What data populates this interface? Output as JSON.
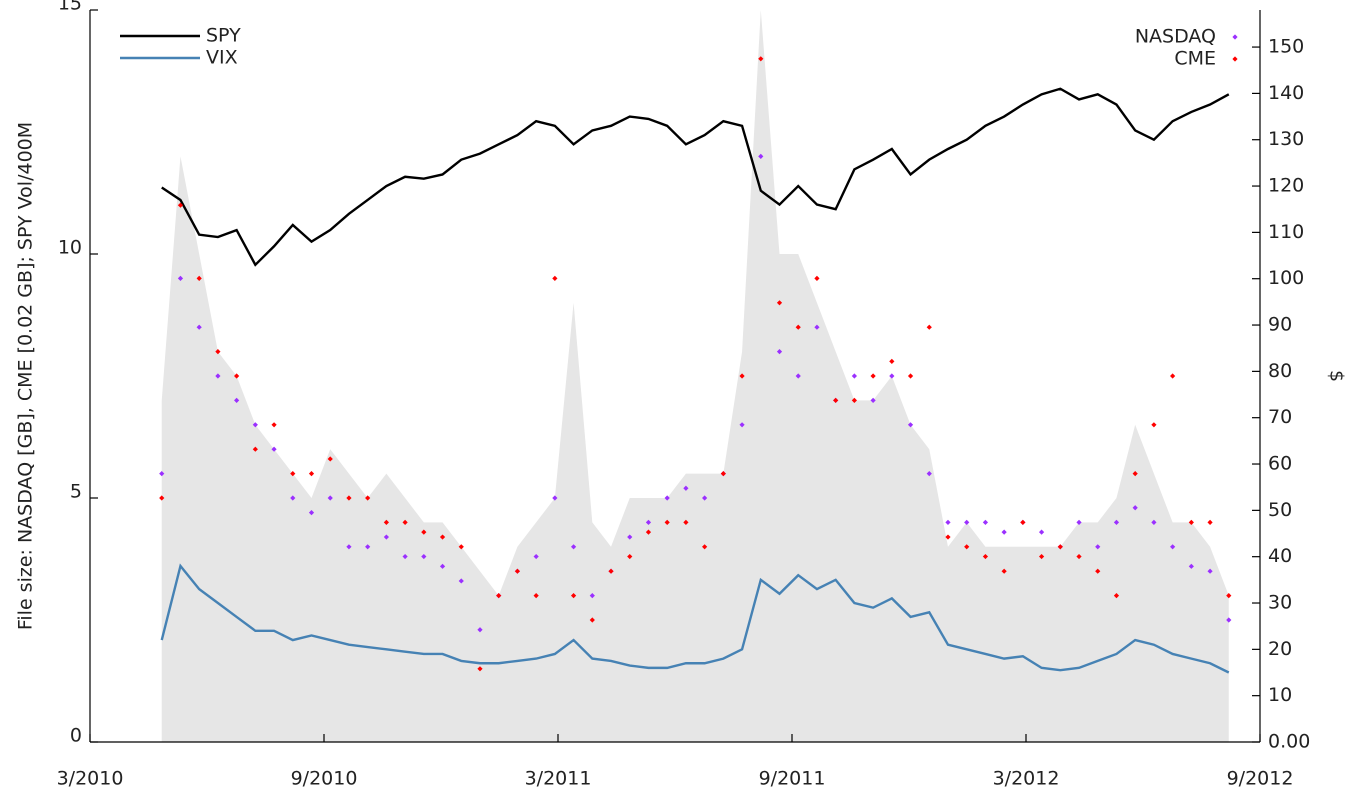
{
  "chart_data": {
    "type": "line",
    "ylabel": "File size: NASDAQ [GB], CME [0.02 GB]; SPY Vol/400M",
    "y2label": "$",
    "xlim": [
      2010.1667,
      2012.6667
    ],
    "xticks": [
      {
        "value": 2010.1667,
        "label": "3/2010"
      },
      {
        "value": 2010.6667,
        "label": "9/2010"
      },
      {
        "value": 2011.1667,
        "label": "3/2011"
      },
      {
        "value": 2011.6667,
        "label": "9/2011"
      },
      {
        "value": 2012.1667,
        "label": "3/2012"
      },
      {
        "value": 2012.6667,
        "label": "9/2012"
      }
    ],
    "ylim": [
      0,
      15
    ],
    "yticks": [
      0,
      5,
      10,
      15
    ],
    "y2lim": [
      0,
      158
    ],
    "y2ticks": [
      {
        "value": 0,
        "label": "0.00"
      },
      10,
      20,
      30,
      40,
      50,
      60,
      70,
      80,
      90,
      100,
      110,
      120,
      130,
      140,
      150
    ],
    "x": [
      2010.32,
      2010.36,
      2010.4,
      2010.44,
      2010.48,
      2010.52,
      2010.56,
      2010.6,
      2010.64,
      2010.68,
      2010.72,
      2010.76,
      2010.8,
      2010.84,
      2010.88,
      2010.92,
      2010.96,
      2011.0,
      2011.04,
      2011.08,
      2011.12,
      2011.16,
      2011.2,
      2011.24,
      2011.28,
      2011.32,
      2011.36,
      2011.4,
      2011.44,
      2011.48,
      2011.52,
      2011.56,
      2011.6,
      2011.64,
      2011.68,
      2011.72,
      2011.76,
      2011.8,
      2011.84,
      2011.88,
      2011.92,
      2011.96,
      2012.0,
      2012.04,
      2012.08,
      2012.12,
      2012.16,
      2012.2,
      2012.24,
      2012.28,
      2012.32,
      2012.36,
      2012.4,
      2012.44,
      2012.48,
      2012.52,
      2012.56,
      2012.6
    ],
    "series": [
      {
        "mark": "area",
        "axis": "y",
        "color": "#e6e6e6",
        "values": [
          7,
          12,
          10,
          8,
          7.5,
          6.5,
          6,
          5.5,
          5,
          6,
          5.5,
          5,
          5.5,
          5,
          4.5,
          4.5,
          4,
          3.5,
          3,
          4,
          4.5,
          5,
          9,
          4.5,
          4,
          5,
          5,
          5,
          5.5,
          5.5,
          5.5,
          8,
          15,
          10,
          10,
          9,
          8,
          7,
          7,
          7.5,
          6.5,
          6,
          4,
          4.5,
          4,
          4,
          4,
          4,
          4,
          4.5,
          4.5,
          5,
          6.5,
          5.5,
          4.5,
          4.5,
          4,
          3
        ]
      },
      {
        "name": "SPY",
        "mark": "line",
        "axis": "y2",
        "color": "#000000",
        "legend": "upper left",
        "values": [
          119.7,
          117,
          109.5,
          109,
          110.5,
          103,
          107,
          111.6,
          108,
          110.5,
          114,
          117,
          120,
          122,
          121.6,
          122.5,
          125.7,
          127,
          129,
          131,
          134,
          133,
          129,
          132,
          133,
          135,
          134.5,
          133,
          129,
          131,
          134,
          133,
          119,
          116,
          120,
          116,
          115,
          123.6,
          125.7,
          128,
          122.5,
          125.7,
          128,
          130,
          133,
          135,
          137.6,
          139.8,
          141,
          138.7,
          139.8,
          137.6,
          132,
          130,
          134,
          136,
          137.6,
          139.8
        ]
      },
      {
        "name": "VIX",
        "mark": "line",
        "axis": "y2",
        "color": "#4682b4",
        "legend": "upper left",
        "values": [
          22,
          38,
          33,
          30,
          27,
          24,
          24,
          22,
          23,
          22,
          21,
          20.5,
          20,
          19.5,
          19,
          19,
          17.5,
          17,
          17,
          17.5,
          18,
          19,
          22,
          18,
          17.5,
          16.5,
          16,
          16,
          17,
          17,
          18,
          20,
          35,
          32,
          36,
          33,
          35,
          30,
          29,
          31,
          27,
          28,
          21,
          20,
          19,
          18,
          18.5,
          16,
          15.5,
          16,
          17.5,
          19,
          22,
          21,
          19,
          18,
          17,
          15
        ]
      },
      {
        "name": "NASDAQ",
        "mark": "points",
        "axis": "y",
        "color": "#9b30ff",
        "legend": "upper right",
        "values": [
          5.5,
          9.5,
          8.5,
          7.5,
          7,
          6.5,
          6,
          5,
          4.7,
          5,
          4,
          4,
          4.2,
          3.8,
          3.8,
          3.6,
          3.3,
          2.3,
          3,
          3.5,
          3.8,
          5,
          4,
          3,
          3.5,
          4.2,
          4.5,
          5,
          5.2,
          5,
          5.5,
          6.5,
          12,
          8,
          7.5,
          8.5,
          7,
          7.5,
          7,
          7.5,
          6.5,
          5.5,
          4.5,
          4.5,
          4.5,
          4.3,
          4.5,
          4.3,
          4,
          4.5,
          4,
          4.5,
          4.8,
          4.5,
          4,
          3.6,
          3.5,
          2.5
        ]
      },
      {
        "name": "CME",
        "mark": "points",
        "axis": "y",
        "color": "#ff0000",
        "legend": "upper right",
        "values": [
          5,
          11,
          9.5,
          8,
          7.5,
          6,
          6.5,
          5.5,
          5.5,
          5.8,
          5,
          5,
          4.5,
          4.5,
          4.3,
          4.2,
          4,
          1.5,
          3,
          3.5,
          3,
          9.5,
          3,
          2.5,
          3.5,
          3.8,
          4.3,
          4.5,
          4.5,
          4,
          5.5,
          7.5,
          14,
          9,
          8.5,
          9.5,
          7,
          7,
          7.5,
          7.8,
          7.5,
          8.5,
          4.2,
          4,
          3.8,
          3.5,
          4.5,
          3.8,
          4,
          3.8,
          3.5,
          3,
          5.5,
          6.5,
          7.5,
          4.5,
          4.5,
          3
        ]
      }
    ]
  }
}
